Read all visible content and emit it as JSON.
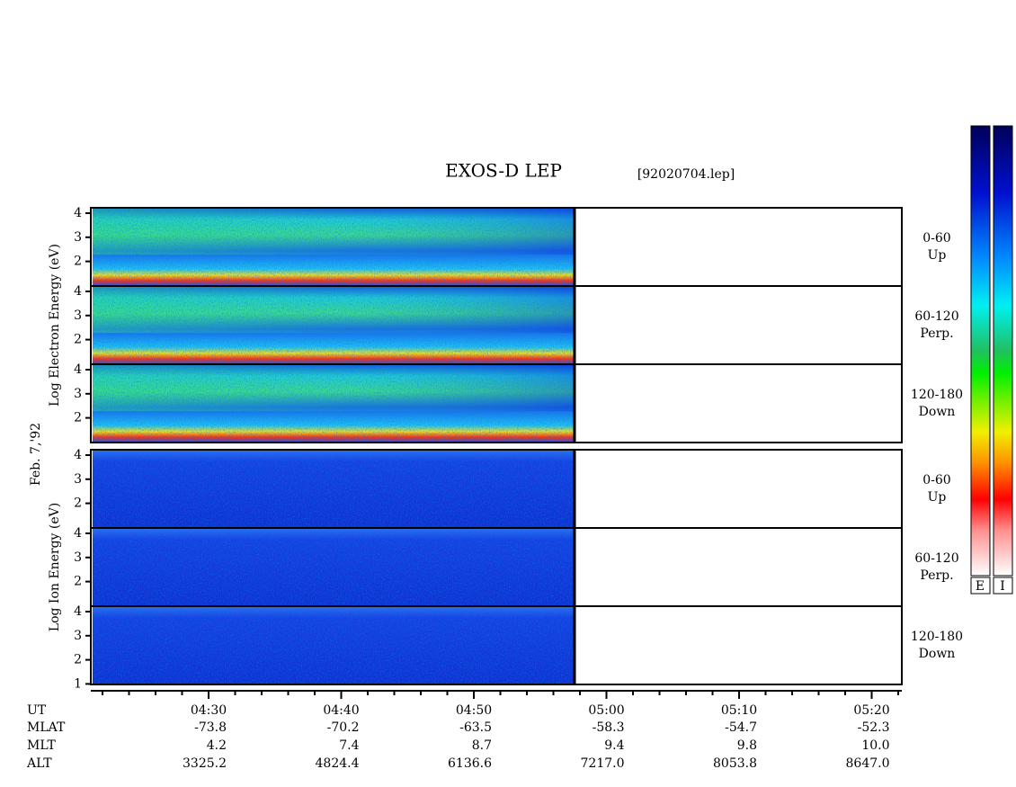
{
  "header": {
    "title": "EXOS-D LEP",
    "file": "[92020704.lep]",
    "date": "Feb. 7,'92"
  },
  "groups": [
    {
      "label": "Log Electron Energy (eV)",
      "kind": "electron",
      "panels": [
        {
          "angle": "0-60",
          "direction": "Up",
          "yticks": [
            2,
            3,
            4
          ]
        },
        {
          "angle": "60-120",
          "direction": "Perp.",
          "yticks": [
            2,
            3,
            4
          ]
        },
        {
          "angle": "120-180",
          "direction": "Down",
          "yticks": [
            2,
            3,
            4
          ]
        }
      ]
    },
    {
      "label": "Log Ion Energy (eV)",
      "kind": "ion",
      "panels": [
        {
          "angle": "0-60",
          "direction": "Up",
          "yticks": [
            2,
            3,
            4
          ]
        },
        {
          "angle": "60-120",
          "direction": "Perp.",
          "yticks": [
            2,
            3,
            4
          ]
        },
        {
          "angle": "120-180",
          "direction": "Down",
          "yticks": [
            1,
            2,
            3,
            4
          ]
        }
      ]
    }
  ],
  "axis": {
    "row_labels": [
      "UT",
      "MLAT",
      "MLT",
      "ALT"
    ],
    "columns": [
      [
        "04:30",
        "-73.8",
        "4.2",
        "3325.2"
      ],
      [
        "04:40",
        "-70.2",
        "7.4",
        "4824.4"
      ],
      [
        "04:50",
        "-63.5",
        "8.7",
        "6136.6"
      ],
      [
        "05:00",
        "-58.3",
        "9.4",
        "7217.0"
      ],
      [
        "05:10",
        "-54.7",
        "9.8",
        "8053.8"
      ],
      [
        "05:20",
        "-52.3",
        "10.0",
        "8647.0"
      ]
    ]
  },
  "colorbar": {
    "labels": [
      "E",
      "I"
    ]
  }
}
